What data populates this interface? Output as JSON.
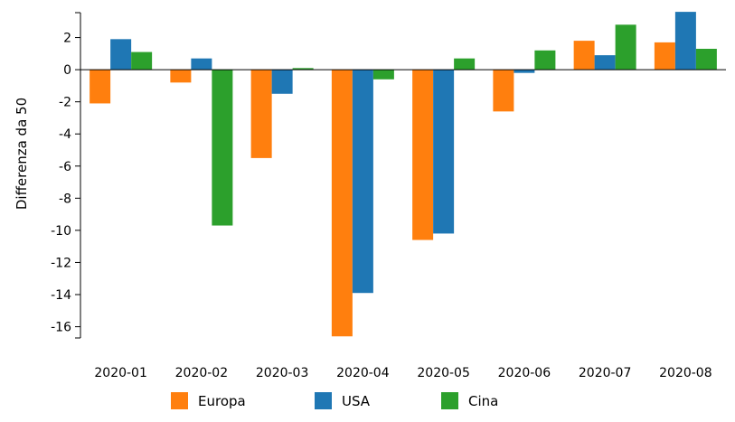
{
  "chart_data": {
    "type": "bar",
    "title": "",
    "xlabel": "",
    "ylabel": "Differenza da 50",
    "categories": [
      "2020-01",
      "2020-02",
      "2020-03",
      "2020-04",
      "2020-05",
      "2020-06",
      "2020-07",
      "2020-08"
    ],
    "series": [
      {
        "name": "Europa",
        "color": "#ff7f0e",
        "values": [
          -2.1,
          -0.8,
          -5.5,
          -16.6,
          -10.6,
          -2.6,
          1.8,
          1.7
        ]
      },
      {
        "name": "USA",
        "color": "#1f77b4",
        "values": [
          1.9,
          0.7,
          -1.5,
          -13.9,
          -10.2,
          -0.2,
          0.9,
          3.6
        ]
      },
      {
        "name": "Cina",
        "color": "#2ca02c",
        "values": [
          1.1,
          -9.7,
          0.1,
          -0.6,
          0.7,
          1.2,
          2.8,
          1.3
        ]
      }
    ],
    "ylim": [
      -16.7,
      3.55
    ],
    "yticks": [
      -16,
      -14,
      -12,
      -10,
      -8,
      -6,
      -4,
      -2,
      0,
      2
    ],
    "legend_position": "bottom",
    "grid": false
  }
}
